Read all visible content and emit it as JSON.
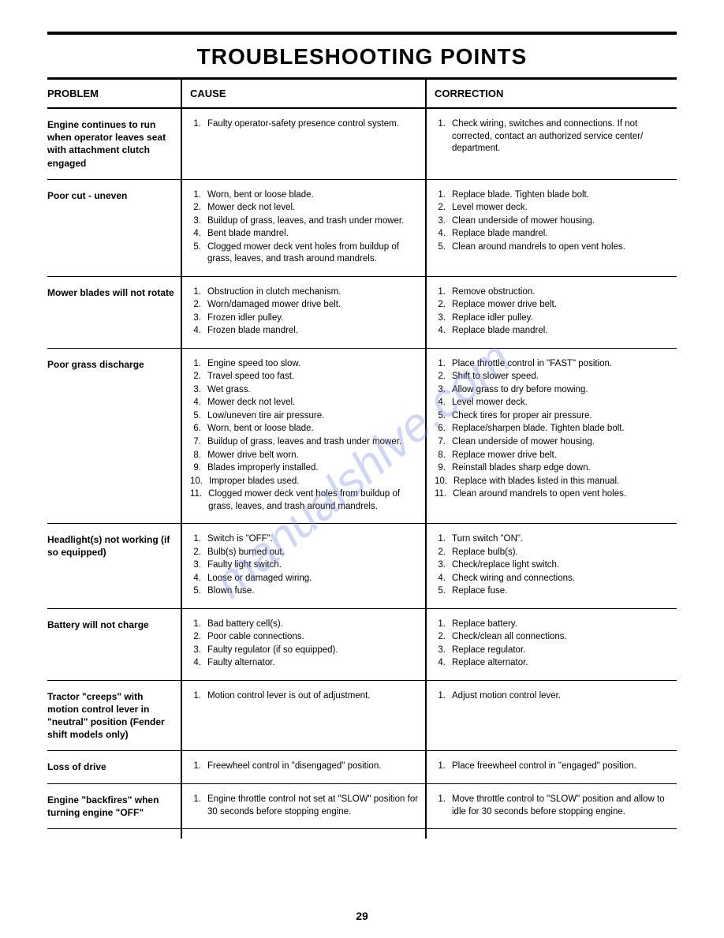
{
  "title": "TROUBLESHOOTING POINTS",
  "headers": {
    "problem": "PROBLEM",
    "cause": "CAUSE",
    "correction": "CORRECTION"
  },
  "watermark": "manualshive.com",
  "page_number": "29",
  "rows": [
    {
      "problem": "Engine continues to run when operator leaves seat with attachment clutch engaged",
      "causes": [
        "Faulty operator-safety presence control system."
      ],
      "corrections": [
        "Check wiring, switches and connections. If not corrected, contact an authorized service center/ department."
      ]
    },
    {
      "problem": "Poor cut - uneven",
      "causes": [
        "Worn, bent or loose blade.",
        "Mower deck not level.",
        "Buildup of grass, leaves, and trash under mower.",
        "Bent blade mandrel.",
        "Clogged mower deck vent holes from buildup of grass, leaves, and trash around mandrels."
      ],
      "corrections": [
        "Replace blade. Tighten blade bolt.",
        "Level mower deck.",
        "Clean underside of mower housing.",
        "Replace blade mandrel.",
        "Clean around mandrels to open vent holes."
      ]
    },
    {
      "problem": "Mower blades will not rotate",
      "causes": [
        "Obstruction in clutch mechanism.",
        "Worn/damaged mower drive belt.",
        "Frozen idler pulley.",
        "Frozen blade mandrel."
      ],
      "corrections": [
        "Remove obstruction.",
        "Replace mower drive belt.",
        "Replace idler pulley.",
        "Replace blade mandrel."
      ]
    },
    {
      "problem": "Poor grass discharge",
      "causes": [
        "Engine speed too slow.",
        "Travel speed too fast.",
        "Wet grass.",
        "Mower deck not level.",
        "Low/uneven tire air pressure.",
        "Worn, bent or loose blade.",
        "Buildup of grass, leaves and trash under mower.",
        "Mower drive belt worn.",
        "Blades improperly installed.",
        "Improper blades used.",
        "Clogged mower deck vent holes from buildup of grass, leaves, and trash around mandrels."
      ],
      "corrections": [
        "Place throttle control in \"FAST\" position.",
        "Shift to slower speed.",
        "Allow grass to dry before mowing.",
        "Level mower deck.",
        "Check tires for proper air pressure.",
        "Replace/sharpen blade. Tighten blade bolt.",
        "Clean underside of mower housing.",
        "Replace mower drive belt.",
        "Reinstall blades sharp edge down.",
        "Replace with blades listed in this manual.",
        "Clean around mandrels to open vent holes."
      ]
    },
    {
      "problem": "Headlight(s) not working (if so equipped)",
      "causes": [
        "Switch is \"OFF\".",
        "Bulb(s) burned out.",
        "Faulty light switch.",
        "Loose or damaged wiring.",
        "Blown fuse."
      ],
      "corrections": [
        "Turn switch \"ON\".",
        "Replace bulb(s).",
        "Check/replace light switch.",
        "Check wiring and connections.",
        "Replace fuse."
      ]
    },
    {
      "problem": "Battery will not charge",
      "causes": [
        "Bad battery cell(s).",
        "Poor cable connections.",
        "Faulty regulator (if so equipped).",
        "Faulty alternator."
      ],
      "corrections": [
        "Replace battery.",
        "Check/clean all connections.",
        "Replace regulator.",
        "Replace alternator."
      ]
    },
    {
      "problem": "Tractor \"creeps\" with motion control lever in \"neutral\" position (Fender shift models only)",
      "causes": [
        "Motion control lever is out of adjustment."
      ],
      "corrections": [
        "Adjust motion control lever."
      ]
    },
    {
      "problem": "Loss of drive",
      "causes": [
        "Freewheel control in \"disengaged\" position."
      ],
      "corrections": [
        "Place freewheel control in \"engaged\" position."
      ]
    },
    {
      "problem": "Engine \"backfires\" when turning engine \"OFF\"",
      "causes": [
        "Engine throttle control not set at \"SLOW\" position for 30 seconds before stopping engine."
      ],
      "corrections": [
        "Move throttle control to \"SLOW\" position and allow to idle for 30 seconds before stopping engine."
      ]
    }
  ]
}
